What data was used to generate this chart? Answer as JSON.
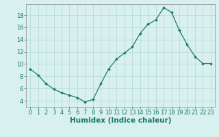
{
  "x": [
    0,
    1,
    2,
    3,
    4,
    5,
    6,
    7,
    8,
    9,
    10,
    11,
    12,
    13,
    14,
    15,
    16,
    17,
    18,
    19,
    20,
    21,
    22,
    23
  ],
  "y": [
    9.2,
    8.2,
    6.8,
    5.9,
    5.3,
    4.9,
    4.5,
    3.8,
    4.2,
    6.8,
    9.2,
    10.8,
    11.8,
    12.8,
    15.0,
    16.5,
    17.2,
    19.2,
    18.5,
    15.5,
    13.2,
    11.2,
    10.1,
    10.1
  ],
  "line_color": "#1a7a6e",
  "marker": "D",
  "marker_size": 2.0,
  "bg_color": "#d8f0ee",
  "grid_color": "#b8dcd8",
  "xlabel": "Humidex (Indice chaleur)",
  "xlim": [
    -0.5,
    23.5
  ],
  "ylim": [
    3.0,
    19.8
  ],
  "yticks": [
    4,
    6,
    8,
    10,
    12,
    14,
    16,
    18
  ],
  "xticks": [
    0,
    1,
    2,
    3,
    4,
    5,
    6,
    7,
    8,
    9,
    10,
    11,
    12,
    13,
    14,
    15,
    16,
    17,
    18,
    19,
    20,
    21,
    22,
    23
  ],
  "tick_color": "#1a7a6e",
  "axis_color": "#888888",
  "font_size": 6.0,
  "xlabel_fontsize": 7.5
}
